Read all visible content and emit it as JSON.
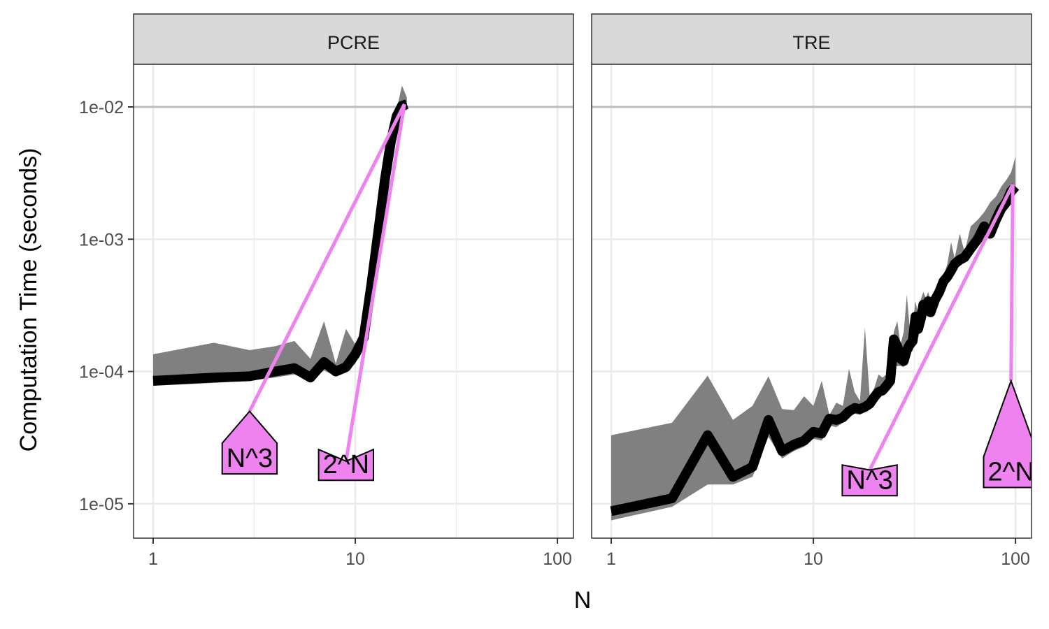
{
  "chart_data": {
    "type": "line",
    "xlabel": "N",
    "ylabel": "Computation Time (seconds)",
    "x_scale": "log10",
    "y_scale": "log10",
    "xlim": [
      0.8,
      120
    ],
    "ylim": [
      5.5e-06,
      0.021
    ],
    "x_ticks": [
      1,
      10,
      100
    ],
    "x_tick_labels": [
      "1",
      "10",
      "100"
    ],
    "y_ticks": [
      1e-05,
      0.0001,
      0.001,
      0.01
    ],
    "y_tick_labels": [
      "1e-05",
      "1e-04",
      "1e-03",
      "1e-02"
    ],
    "grid": true,
    "colors": {
      "median": "#000000",
      "band": "#808080",
      "asymptote": "#ee82ee",
      "strip": "#d9d9d9"
    },
    "panels": [
      {
        "strip": "PCRE",
        "median": {
          "x": [
            1,
            2,
            3,
            4,
            5,
            6,
            7,
            8,
            9,
            10,
            11,
            12,
            13,
            14,
            15,
            16,
            17,
            18
          ],
          "y": [
            8.5e-05,
            9e-05,
            9.2e-05,
            0.0001,
            0.000106,
            9e-05,
            0.000118,
            0.0001,
            0.000108,
            0.000135,
            0.00018,
            0.00045,
            0.00115,
            0.0028,
            0.0055,
            0.0085,
            0.0102,
            0.0105
          ]
        },
        "band": {
          "x": [
            1,
            2,
            3,
            4,
            5,
            6,
            7,
            8,
            9,
            10,
            11,
            12,
            13,
            14,
            15,
            16,
            17,
            18
          ],
          "lower": [
            7.8e-05,
            8.2e-05,
            8.5e-05,
            9e-05,
            9.5e-05,
            8.5e-05,
            0.000102,
            9.2e-05,
            9.8e-05,
            0.000115,
            0.00016,
            0.0004,
            0.001,
            0.0025,
            0.005,
            0.0078,
            0.0092,
            0.0095
          ],
          "upper": [
            0.000135,
            0.000165,
            0.000145,
            0.000155,
            0.00017,
            0.000125,
            0.00024,
            0.000115,
            0.00021,
            0.00016,
            0.00022,
            0.00052,
            0.0013,
            0.0031,
            0.0062,
            0.0095,
            0.0145,
            0.0118
          ]
        },
        "asymptotes": [
          {
            "label": "N^3",
            "label_x": 3,
            "label_y": 1.9e-05,
            "points": [
              [
                3,
                5e-05
              ],
              [
                17.5,
                0.0105
              ]
            ]
          },
          {
            "label": "2^N",
            "label_x": 9,
            "label_y": 1.7e-05,
            "points": [
              [
                9,
                2.1e-05
              ],
              [
                17.5,
                0.0105
              ]
            ]
          }
        ]
      },
      {
        "strip": "TRE",
        "median": {
          "x": [
            1,
            2,
            3,
            4,
            5,
            6,
            7,
            8,
            9,
            10,
            11,
            12,
            13,
            14,
            15,
            16,
            17,
            18,
            19,
            20,
            21,
            22,
            23,
            24,
            25,
            26,
            27,
            28,
            29,
            30,
            31,
            32,
            33,
            34,
            35,
            36,
            37,
            38,
            40,
            42,
            44,
            46,
            48,
            50,
            53,
            56,
            60,
            65,
            70,
            75,
            80,
            85,
            90,
            95,
            100
          ],
          "y": [
            8.8e-06,
            1.1e-05,
            3.3e-05,
            1.6e-05,
            1.9e-05,
            4.3e-05,
            2.5e-05,
            2.8e-05,
            3e-05,
            3.5e-05,
            3.4e-05,
            4.4e-05,
            4.3e-05,
            4.5e-05,
            5e-05,
            5.3e-05,
            5.2e-05,
            5.4e-05,
            5.7e-05,
            6.4e-05,
            7e-05,
            7.2e-05,
            7.8e-05,
            8.5e-05,
            0.000175,
            0.000155,
            0.000125,
            0.00012,
            0.000145,
            0.00016,
            0.00017,
            0.00026,
            0.00021,
            0.00025,
            0.00032,
            0.00029,
            0.00034,
            0.00028,
            0.00035,
            0.0004,
            0.00048,
            0.00052,
            0.00058,
            0.00065,
            0.0007,
            0.00073,
            0.00085,
            0.001,
            0.00125,
            0.0011,
            0.0014,
            0.0017,
            0.0019,
            0.0023,
            0.0025
          ]
        },
        "band": {
          "x": [
            1,
            2,
            3,
            4,
            5,
            6,
            7,
            8,
            9,
            10,
            11,
            12,
            13,
            14,
            15,
            16,
            17,
            18,
            19,
            20,
            21,
            22,
            23,
            24,
            25,
            26,
            27,
            28,
            29,
            30,
            31,
            32,
            33,
            34,
            35,
            36,
            37,
            38,
            40,
            42,
            44,
            46,
            48,
            50,
            53,
            56,
            60,
            65,
            70,
            75,
            80,
            85,
            90,
            95,
            100
          ],
          "lower": [
            7.5e-06,
            9.5e-06,
            1.4e-05,
            1.4e-05,
            1.6e-05,
            3.2e-05,
            2.2e-05,
            2.5e-05,
            2.7e-05,
            3.1e-05,
            3e-05,
            3.9e-05,
            3.8e-05,
            4.1e-05,
            4.5e-05,
            4.8e-05,
            4.7e-05,
            5e-05,
            5.2e-05,
            5.9e-05,
            6.4e-05,
            6.7e-05,
            7.2e-05,
            7.9e-05,
            0.000105,
            0.00011,
            0.00011,
            0.000108,
            0.00012,
            0.000135,
            0.000145,
            0.00018,
            0.00018,
            0.00021,
            0.00026,
            0.00025,
            0.00029,
            0.00026,
            0.00031,
            0.00036,
            0.00043,
            0.00047,
            0.00052,
            0.00058,
            0.00063,
            0.00066,
            0.00076,
            0.0009,
            0.0011,
            0.001,
            0.00125,
            0.0015,
            0.0017,
            0.002,
            0.0022
          ],
          "upper": [
            3.3e-05,
            4.1e-05,
            9.3e-05,
            4.3e-05,
            5.5e-05,
            9.2e-05,
            5.2e-05,
            5.1e-05,
            6.5e-05,
            5.5e-05,
            8.5e-05,
            4.7e-05,
            5.8e-05,
            5.5e-05,
            0.000105,
            7e-05,
            6e-05,
            0.000215,
            6.5e-05,
            7.5e-05,
            9.5e-05,
            9e-05,
            9.5e-05,
            0.0001,
            0.0002,
            0.00024,
            0.00016,
            0.0002,
            0.00038,
            0.00021,
            0.00023,
            0.00034,
            0.00027,
            0.00035,
            0.0004,
            0.00036,
            0.0004,
            0.00034,
            0.00042,
            0.00046,
            0.00052,
            0.00065,
            0.00095,
            0.00072,
            0.0011,
            0.0008,
            0.00125,
            0.0014,
            0.0016,
            0.0019,
            0.0021,
            0.0025,
            0.0028,
            0.0032,
            0.0042
          ]
        },
        "asymptotes": [
          {
            "label": "N^3",
            "label_x": 19,
            "label_y": 1.3e-05,
            "points": [
              [
                19,
                1.8e-05
              ],
              [
                97,
                0.0026
              ]
            ]
          },
          {
            "label": "2^N",
            "label_x": 95,
            "label_y": 1.5e-05,
            "points": [
              [
                95,
                8.5e-05
              ],
              [
                97,
                0.0026
              ]
            ]
          }
        ]
      }
    ]
  }
}
